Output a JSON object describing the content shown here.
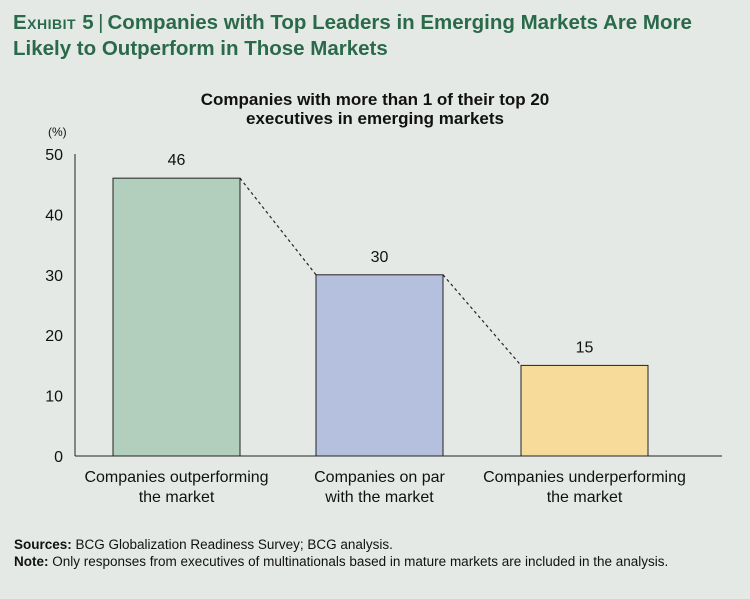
{
  "exhibit": {
    "label": "Exhibit 5",
    "title": "Companies with Top Leaders in Emerging Markets Are More Likely to Outperform in Those Markets"
  },
  "chart_data": {
    "type": "bar",
    "title_lines": [
      "Companies with more than 1 of their top 20",
      "executives in emerging markets"
    ],
    "unit_label": "(%)",
    "ylim": [
      0,
      50
    ],
    "yticks": [
      0,
      10,
      20,
      30,
      40,
      50
    ],
    "categories": [
      [
        "Companies outperforming",
        "the market"
      ],
      [
        "Companies on par",
        "with the market"
      ],
      [
        "Companies underperforming",
        "the market"
      ]
    ],
    "values": [
      46,
      30,
      15
    ],
    "colors": [
      "#b2cfbe",
      "#b4c0de",
      "#f6db9a"
    ],
    "connector": "dashed"
  },
  "footnotes": {
    "sources_label": "Sources:",
    "sources_text": " BCG Globalization Readiness Survey; BCG analysis.",
    "note_label": "Note:",
    "note_text": " Only responses from executives of multinationals based in mature markets are included in the analysis."
  }
}
